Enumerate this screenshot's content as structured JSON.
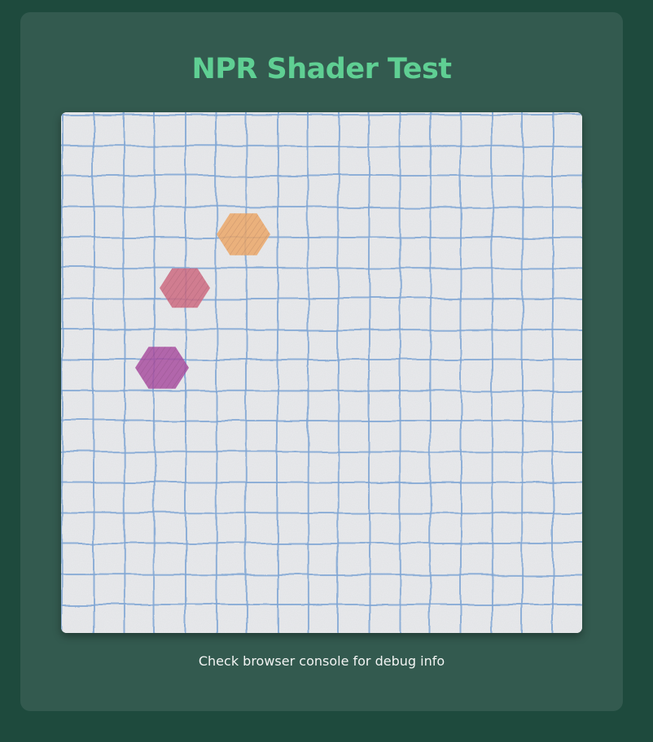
{
  "page": {
    "title": "NPR Shader Test",
    "caption": "Check browser console for debug info"
  },
  "colors": {
    "background": "#1e4a3d",
    "panel": "#335a4f",
    "title": "#5fcf93",
    "paper": "#e9eaec",
    "grid_line": "#7fa6d4"
  },
  "canvas": {
    "grid": {
      "rows": 17,
      "cols": 17
    },
    "hexagons": [
      {
        "name": "hexagon-orange",
        "color": "#eba769"
      },
      {
        "name": "hexagon-pink",
        "color": "#cc6a80"
      },
      {
        "name": "hexagon-purple",
        "color": "#a84fa0"
      }
    ]
  }
}
